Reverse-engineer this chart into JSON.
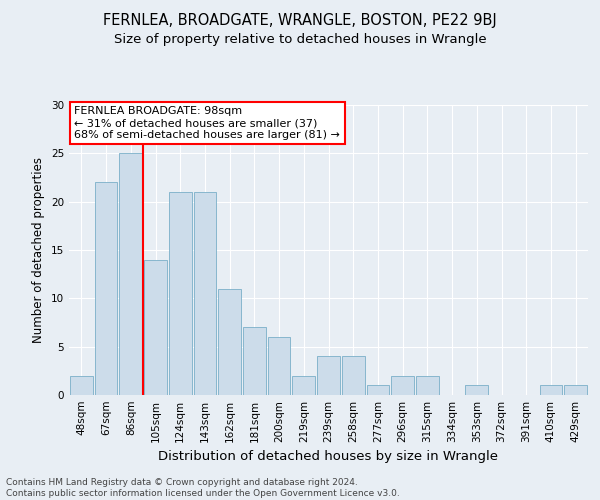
{
  "title": "FERNLEA, BROADGATE, WRANGLE, BOSTON, PE22 9BJ",
  "subtitle": "Size of property relative to detached houses in Wrangle",
  "xlabel": "Distribution of detached houses by size in Wrangle",
  "ylabel": "Number of detached properties",
  "categories": [
    "48sqm",
    "67sqm",
    "86sqm",
    "105sqm",
    "124sqm",
    "143sqm",
    "162sqm",
    "181sqm",
    "200sqm",
    "219sqm",
    "239sqm",
    "258sqm",
    "277sqm",
    "296sqm",
    "315sqm",
    "334sqm",
    "353sqm",
    "372sqm",
    "391sqm",
    "410sqm",
    "429sqm"
  ],
  "values": [
    2,
    22,
    25,
    14,
    21,
    21,
    11,
    7,
    6,
    2,
    4,
    4,
    1,
    2,
    2,
    0,
    1,
    0,
    0,
    1,
    1
  ],
  "bar_color": "#ccdcea",
  "bar_edge_color": "#7aafc8",
  "vline_color": "red",
  "vline_pos": 2.5,
  "annotation_text": "FERNLEA BROADGATE: 98sqm\n← 31% of detached houses are smaller (37)\n68% of semi-detached houses are larger (81) →",
  "annotation_box_color": "white",
  "annotation_box_edge": "red",
  "ylim": [
    0,
    30
  ],
  "yticks": [
    0,
    5,
    10,
    15,
    20,
    25,
    30
  ],
  "footer": "Contains HM Land Registry data © Crown copyright and database right 2024.\nContains public sector information licensed under the Open Government Licence v3.0.",
  "background_color": "#e8eef4",
  "plot_background": "#e8eef4",
  "title_fontsize": 10.5,
  "subtitle_fontsize": 9.5,
  "xlabel_fontsize": 9.5,
  "ylabel_fontsize": 8.5,
  "tick_fontsize": 7.5,
  "annotation_fontsize": 8,
  "footer_fontsize": 6.5
}
